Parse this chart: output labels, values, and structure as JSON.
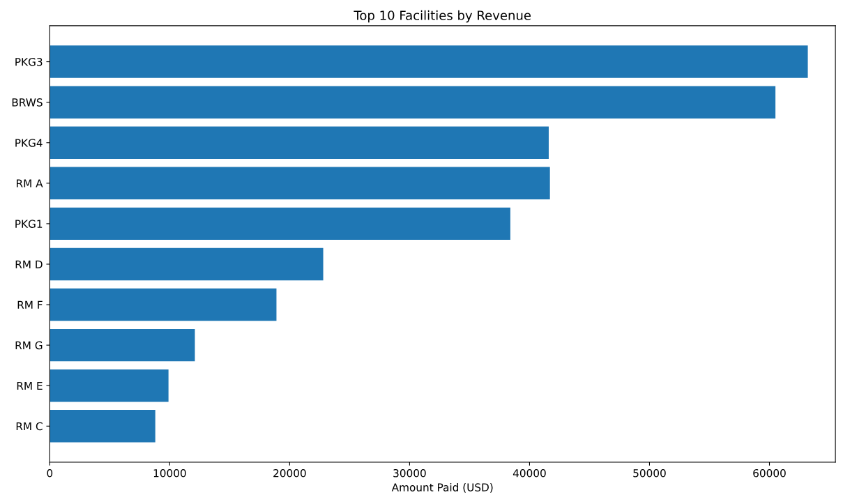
{
  "chart_data": {
    "type": "bar",
    "orientation": "horizontal",
    "title": "Top 10 Facilities by Revenue",
    "xlabel": "Amount Paid (USD)",
    "categories": [
      "PKG3",
      "BRWS",
      "PKG4",
      "RM A",
      "PKG1",
      "RM D",
      "RM F",
      "RM G",
      "RM E",
      "RM C"
    ],
    "values": [
      63200,
      60500,
      41600,
      41700,
      38400,
      22800,
      18900,
      12100,
      9900,
      8800
    ],
    "color": "#1f77b4",
    "xlim": [
      0,
      65500
    ],
    "xticks": [
      0,
      10000,
      20000,
      30000,
      40000,
      50000,
      60000
    ],
    "grid": false
  }
}
